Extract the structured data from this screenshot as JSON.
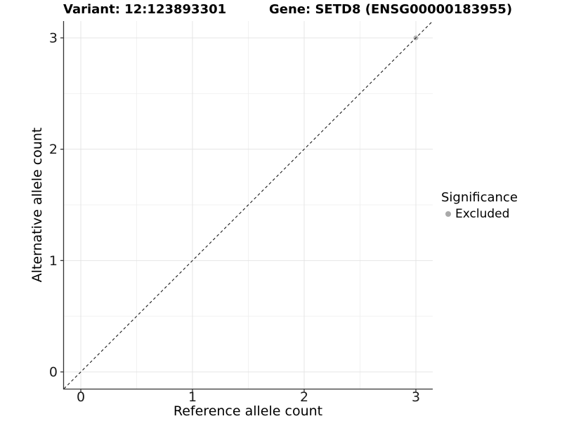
{
  "header": {
    "title_left": "Variant: 12:123893301",
    "title_right": "Gene: SETD8 (ENSG00000183955)"
  },
  "chart_data": {
    "type": "scatter",
    "title": "Variant: 12:123893301        Gene: SETD8 (ENSG00000183955)",
    "xlabel": "Reference allele count",
    "ylabel": "Alternative allele count",
    "xlim": [
      -0.151,
      3.151
    ],
    "ylim": [
      -0.151,
      3.151
    ],
    "x_ticks": [
      0,
      1,
      2,
      3
    ],
    "y_ticks": [
      0,
      1,
      2,
      3
    ],
    "x_minor_ticks": [
      0.5,
      1.5,
      2.5
    ],
    "y_minor_ticks": [
      0.5,
      1.5,
      2.5
    ],
    "grid": "on",
    "legend_position": "right",
    "series": [
      {
        "name": "Excluded",
        "color": "#b4b4b4",
        "points": [
          {
            "x": 3,
            "y": 3
          }
        ]
      }
    ],
    "reference_line": {
      "kind": "identity",
      "slope": 1,
      "intercept": 0,
      "linestyle": "dashed",
      "x1": -0.151,
      "y1": -0.151,
      "x2": 3.151,
      "y2": 3.151
    },
    "legend": {
      "title": "Significance",
      "items": [
        {
          "label": "Excluded",
          "color": "#a9a9a9",
          "marker": "circle"
        }
      ]
    },
    "colors": {
      "background": "#ffffff",
      "grid_major": "#e4e4e4",
      "grid_minor": "#f0f0f0",
      "axis": "#333333",
      "tick_text": "#1a1a1a",
      "reference_line": "#1a1a1a",
      "point": "#b4b4b4"
    }
  }
}
